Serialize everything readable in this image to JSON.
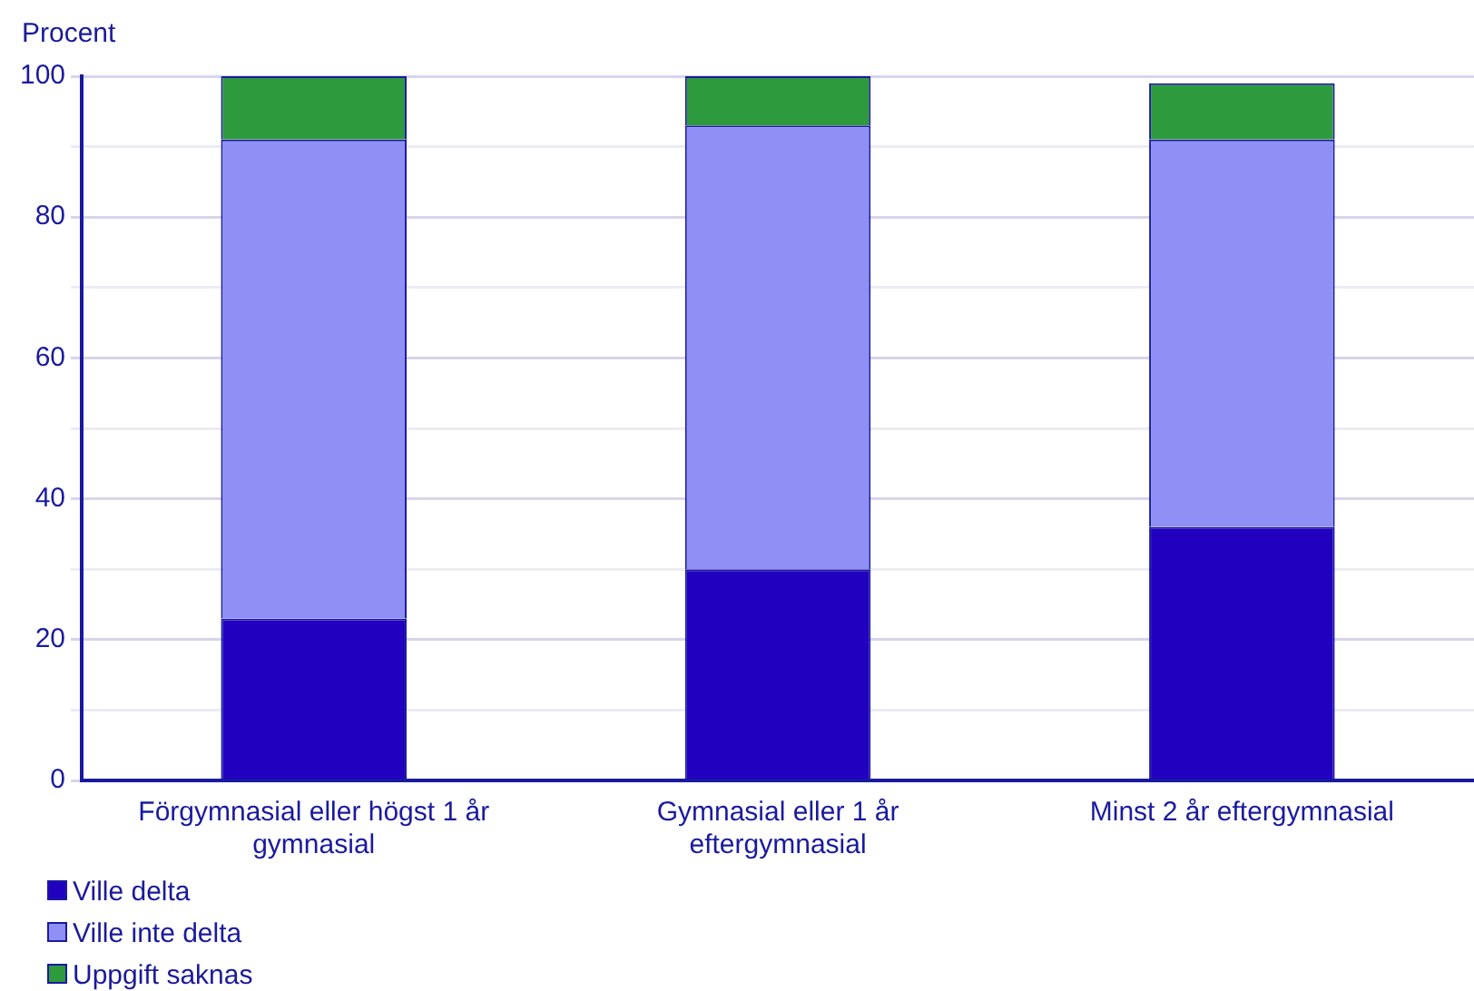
{
  "chart_data": {
    "type": "bar",
    "stacked": true,
    "ylabel": "Procent",
    "categories": [
      "Förgymnasial eller högst 1 år gymnasial",
      "Gymnasial eller 1 år eftergymnasial",
      "Minst 2 år eftergymnasial"
    ],
    "series": [
      {
        "name": "Ville delta",
        "color": "#2200c0",
        "values": [
          23,
          30,
          36
        ]
      },
      {
        "name": "Ville inte delta",
        "color": "#8f8ff5",
        "values": [
          68,
          63,
          55
        ]
      },
      {
        "name": "Uppgift saknas",
        "color": "#2e9a3e",
        "values": [
          9,
          7,
          8
        ]
      }
    ],
    "ylim": [
      0,
      100
    ],
    "yticks": [
      0,
      {
        "value": 10,
        "label": null
      },
      20,
      {
        "value": 30,
        "label": null
      },
      40,
      {
        "value": 50,
        "label": null
      },
      60,
      {
        "value": 70,
        "label": null
      },
      80,
      {
        "value": 90,
        "label": null
      },
      100
    ],
    "grid": "y",
    "legend": "bottom left"
  }
}
